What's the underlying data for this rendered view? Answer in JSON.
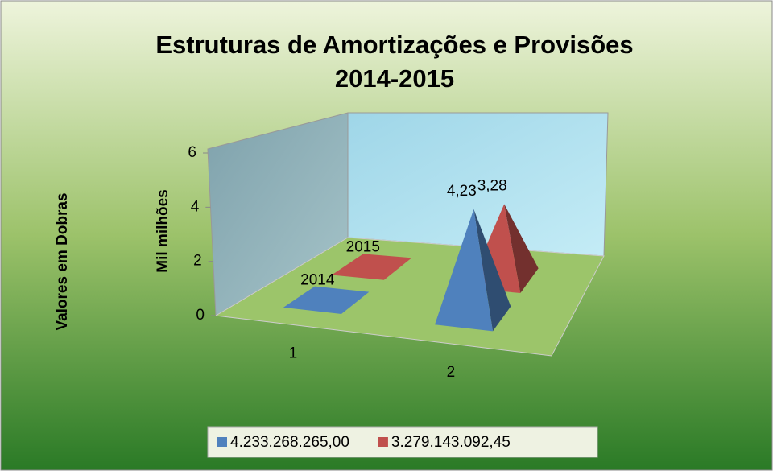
{
  "chart_data": {
    "type": "pyramid3d",
    "title": "Estruturas de Amortizações e Provisões",
    "subtitle": "2014-2015",
    "ylabel": "Mil milhões",
    "axis_note": "Valores em Dobras",
    "categories": [
      "1",
      "2"
    ],
    "series": [
      {
        "name": "4.233.268.265,00",
        "color": "#4f81bd",
        "values": [
          0,
          4.23
        ],
        "value_labels": [
          null,
          "4,23"
        ]
      },
      {
        "name": "3.279.143.092,45",
        "color": "#c0504d",
        "values": [
          0,
          3.28
        ],
        "value_labels": [
          null,
          "3,28"
        ]
      }
    ],
    "annotations": [
      {
        "text": "2014",
        "series": 0
      },
      {
        "text": "2015",
        "series": 1
      }
    ],
    "ylim": [
      0,
      6
    ],
    "yticks": [
      0,
      2,
      4,
      6
    ],
    "legend": "bottom"
  }
}
